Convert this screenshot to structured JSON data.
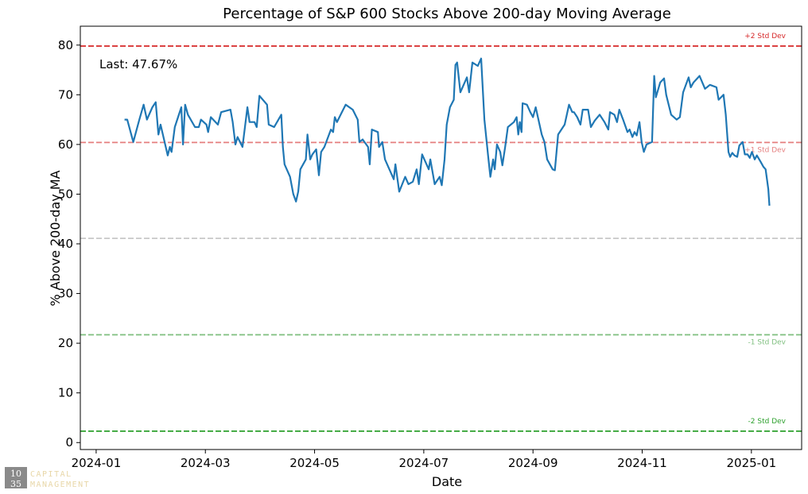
{
  "chart_data": {
    "type": "line",
    "title": "Percentage of S&P 600 Stocks Above 200-day Moving Average",
    "xlabel": "Date",
    "ylabel": "% Above 200-day MA",
    "annotation": "Last: 47.67%",
    "xlim": [
      -0.29,
      12.92
    ],
    "xticks": [
      {
        "value": 0,
        "label": "2024-01"
      },
      {
        "value": 2,
        "label": "2024-03"
      },
      {
        "value": 4,
        "label": "2024-05"
      },
      {
        "value": 6,
        "label": "2024-07"
      },
      {
        "value": 8,
        "label": "2024-09"
      },
      {
        "value": 10,
        "label": "2024-11"
      },
      {
        "value": 12,
        "label": "2025-01"
      }
    ],
    "ylim": [
      -1.4,
      83.8
    ],
    "yticks": [
      0,
      10,
      20,
      30,
      40,
      50,
      60,
      70,
      80
    ],
    "mean_line": {
      "value": 41.1,
      "color": "#c8c8c8"
    },
    "reference_lines": [
      {
        "value": 79.8,
        "label": "+2 Std Dev",
        "color": "#d62728"
      },
      {
        "value": 60.4,
        "label": "+1 Std Dev",
        "color": "#e57f7f"
      },
      {
        "value": 21.7,
        "label": "-1 Std Dev",
        "color": "#7fbf7f"
      },
      {
        "value": 2.3,
        "label": "-2 Std Dev",
        "color": "#2ca02c"
      }
    ],
    "series": [
      {
        "color": "#1f77b4",
        "x": [
          0.52,
          0.57,
          0.68,
          0.79,
          0.87,
          0.93,
          1.03,
          1.09,
          1.14,
          1.18,
          1.31,
          1.35,
          1.38,
          1.44,
          1.56,
          1.59,
          1.63,
          1.68,
          1.81,
          1.88,
          1.92,
          2.02,
          2.05,
          2.1,
          2.23,
          2.29,
          2.46,
          2.5,
          2.55,
          2.59,
          2.68,
          2.77,
          2.81,
          2.9,
          2.94,
          2.99,
          3.13,
          3.16,
          3.26,
          3.39,
          3.42,
          3.45,
          3.55,
          3.61,
          3.66,
          3.7,
          3.74,
          3.84,
          3.87,
          3.92,
          3.96,
          4.03,
          4.08,
          4.12,
          4.18,
          4.3,
          4.34,
          4.37,
          4.41,
          4.5,
          4.57,
          4.7,
          4.79,
          4.82,
          4.88,
          4.98,
          5.01,
          5.05,
          5.16,
          5.18,
          5.24,
          5.29,
          5.37,
          5.45,
          5.48,
          5.55,
          5.66,
          5.72,
          5.8,
          5.87,
          5.91,
          5.97,
          6.09,
          6.12,
          6.2,
          6.29,
          6.33,
          6.38,
          6.42,
          6.48,
          6.55,
          6.58,
          6.61,
          6.67,
          6.79,
          6.83,
          6.89,
          6.99,
          7.05,
          7.11,
          7.18,
          7.22,
          7.27,
          7.3,
          7.34,
          7.4,
          7.44,
          7.49,
          7.54,
          7.65,
          7.7,
          7.73,
          7.76,
          7.79,
          7.81,
          7.89,
          7.95,
          8.0,
          8.05,
          8.16,
          8.21,
          8.26,
          8.36,
          8.4,
          8.46,
          8.58,
          8.66,
          8.72,
          8.75,
          8.81,
          8.87,
          8.91,
          9.01,
          9.06,
          9.13,
          9.22,
          9.31,
          9.38,
          9.41,
          9.49,
          9.54,
          9.58,
          9.65,
          9.73,
          9.77,
          9.82,
          9.86,
          9.9,
          9.95,
          9.99,
          10.03,
          10.08,
          10.18,
          10.22,
          10.25,
          10.33,
          10.4,
          10.44,
          10.53,
          10.63,
          10.69,
          10.75,
          10.85,
          10.89,
          10.94,
          11.05,
          11.15,
          11.24,
          11.36,
          11.4,
          11.49,
          11.53,
          11.58,
          11.61,
          11.65,
          11.69,
          11.74,
          11.78,
          11.84,
          11.88,
          11.93,
          11.97,
          12.01,
          12.06,
          12.1,
          12.17,
          12.22,
          12.26,
          12.31,
          12.33
        ],
        "values": [
          65,
          65,
          60.5,
          65,
          68,
          65,
          67.5,
          68.5,
          62,
          64,
          57.8,
          59.5,
          58.5,
          63.5,
          67.5,
          60,
          68,
          66,
          63.5,
          63.5,
          65,
          64,
          62.5,
          65.5,
          64,
          66.5,
          67,
          64.5,
          60,
          61.5,
          59.5,
          67.5,
          64.5,
          64.5,
          63.5,
          69.8,
          68,
          64,
          63.5,
          66,
          59.5,
          56,
          53.5,
          50,
          48.5,
          50.5,
          55,
          57,
          62,
          57,
          58,
          59,
          53.8,
          58.5,
          59.5,
          63,
          62.5,
          65.5,
          64.5,
          66.5,
          68,
          67,
          65,
          60.5,
          61,
          59.5,
          56,
          63,
          62.5,
          59.5,
          60.5,
          57,
          55,
          53,
          56,
          50.5,
          53.5,
          52,
          52.5,
          55,
          52,
          58,
          55,
          57,
          52,
          53.5,
          51.8,
          57,
          64,
          67.5,
          69,
          76,
          76.5,
          70.5,
          73.5,
          70.5,
          76.5,
          75.8,
          77.3,
          65,
          57.5,
          53.5,
          57,
          55,
          60,
          58.5,
          55.8,
          59.5,
          63.5,
          64.5,
          65.5,
          62,
          64.5,
          62.5,
          68.3,
          68,
          66.5,
          65.5,
          67.5,
          62,
          60.5,
          57,
          55,
          54.8,
          62,
          64,
          68,
          66.5,
          66.5,
          65.5,
          64,
          67,
          67,
          63.5,
          64.8,
          66,
          64.5,
          63,
          66.5,
          66,
          64.5,
          67,
          65,
          62.5,
          63,
          61.5,
          62.5,
          61.8,
          64.5,
          60.5,
          58.5,
          60,
          60.5,
          73.8,
          69.5,
          72.5,
          73.3,
          70,
          66,
          65,
          65.5,
          70.5,
          73.5,
          71.5,
          72.5,
          73.8,
          71.2,
          72,
          71.5,
          69,
          70,
          66,
          58.5,
          57.5,
          58.3,
          57.8,
          57.5,
          59.8,
          60.5,
          58,
          58,
          57.3,
          58.5,
          57,
          57.8,
          56.5,
          55.5,
          55,
          51,
          47.67
        ]
      }
    ]
  },
  "watermark": {
    "number_top": "10",
    "number_bottom": "35",
    "line1": "CAPITAL",
    "line2": "MANAGEMENT"
  }
}
